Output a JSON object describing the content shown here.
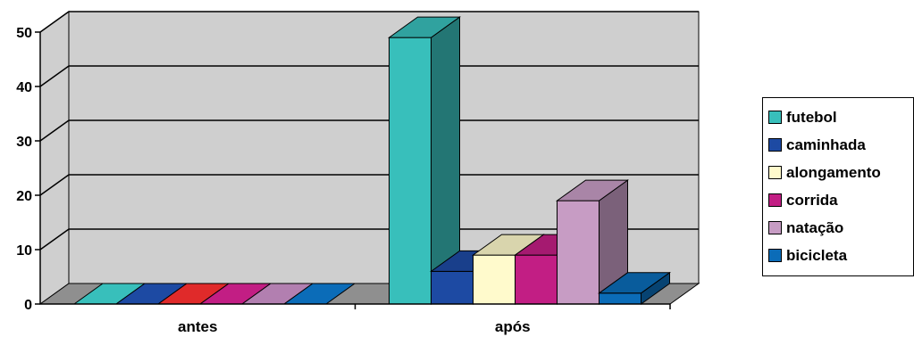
{
  "chart_data": {
    "type": "bar",
    "title": "",
    "xlabel": "",
    "ylabel": "",
    "ylim": [
      0,
      50
    ],
    "yticks": [
      0,
      10,
      20,
      30,
      40,
      50
    ],
    "grid": true,
    "legend_position": "right",
    "style": "3d-clustered-column",
    "categories": [
      "antes",
      "após"
    ],
    "series": [
      {
        "name": "futebol",
        "values": [
          0,
          49
        ],
        "color": "#38bfbb"
      },
      {
        "name": "caminhada",
        "values": [
          0,
          6
        ],
        "color": "#1d4aa3"
      },
      {
        "name": "alongamento",
        "values": [
          0,
          9
        ],
        "color": "#fffacc"
      },
      {
        "name": "corrida",
        "values": [
          0,
          9
        ],
        "color": "#c21e84"
      },
      {
        "name": "natação",
        "values": [
          0,
          19
        ],
        "color": "#c79cc4"
      },
      {
        "name": "bicicleta",
        "values": [
          0,
          2
        ],
        "color": "#0b6cb8"
      }
    ],
    "zero_value_colors": [
      "#38bfbb",
      "#1d4aa3",
      "#e02a2a",
      "#c21e84",
      "#b27fb0",
      "#0b6cb8"
    ],
    "colors": {
      "wall": "#cfcfcf",
      "floor": "#8f8f8f",
      "gridline": "#000000"
    }
  }
}
